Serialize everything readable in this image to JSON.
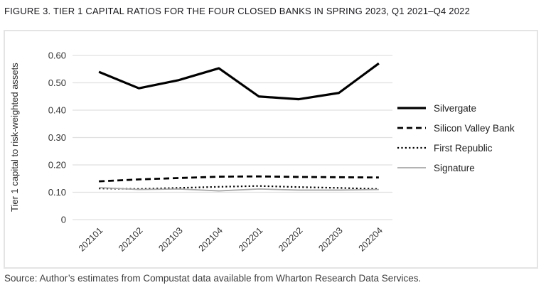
{
  "figure": {
    "title": "FIGURE 3. TIER 1 CAPITAL RATIOS FOR THE FOUR CLOSED BANKS IN SPRING 2023, Q1 2021–Q4 2022",
    "source": "Source: Author’s estimates from Compustat data available from Wharton Research Data Services."
  },
  "chart_data": {
    "type": "line",
    "title": "",
    "xlabel": "",
    "ylabel": "Tier 1 capital to risk-weighted assets",
    "x": [
      "202101",
      "202102",
      "202103",
      "202104",
      "202201",
      "202202",
      "202203",
      "202204"
    ],
    "series": [
      {
        "name": "Silvergate",
        "style": "solid",
        "color": "#000000",
        "width": 3.2,
        "values": [
          0.54,
          0.48,
          0.51,
          0.553,
          0.45,
          0.44,
          0.463,
          0.571
        ]
      },
      {
        "name": "Silicon Valley Bank",
        "style": "dashed",
        "color": "#000000",
        "width": 2.8,
        "values": [
          0.14,
          0.147,
          0.152,
          0.157,
          0.158,
          0.156,
          0.155,
          0.154
        ]
      },
      {
        "name": "First Republic",
        "style": "dotted",
        "color": "#000000",
        "width": 2.2,
        "values": [
          0.114,
          0.112,
          0.116,
          0.12,
          0.123,
          0.119,
          0.116,
          0.112
        ]
      },
      {
        "name": "Signature",
        "style": "solid",
        "color": "#a8a8a8",
        "width": 1.8,
        "values": [
          0.117,
          0.11,
          0.112,
          0.105,
          0.112,
          0.108,
          0.108,
          0.11
        ]
      }
    ],
    "ylim": [
      0,
      0.6
    ],
    "yticks": [
      0,
      0.1,
      0.2,
      0.3,
      0.4,
      0.5,
      0.6
    ],
    "ytick_labels": [
      "0",
      "0.10",
      "0.20",
      "0.30",
      "0.40",
      "0.50",
      "0.60"
    ],
    "xtick_rotation_deg": -45,
    "grid": true,
    "gridline_color": "#e0e0e0",
    "legend_position": "right"
  }
}
